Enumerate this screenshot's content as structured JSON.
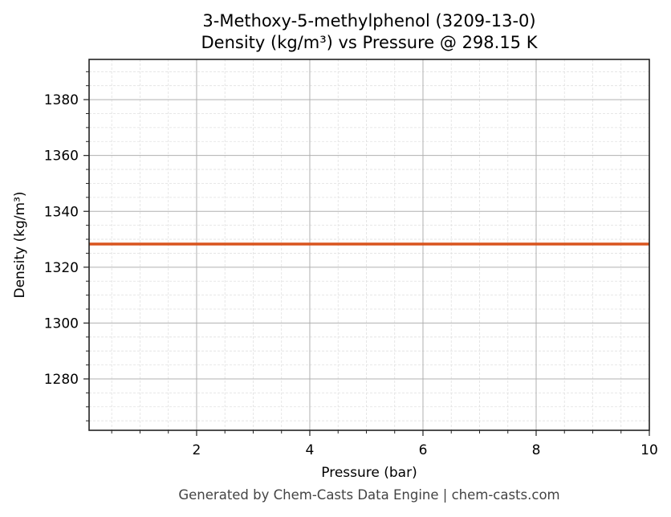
{
  "chart_data": {
    "type": "line",
    "title": "3-Methoxy-5-methylphenol (3209-13-0)",
    "subtitle": "Density (kg/m³) vs Pressure @ 298.15 K",
    "xlabel": "Pressure (bar)",
    "ylabel": "Density (kg/m³)",
    "xlim": [
      0.1,
      10
    ],
    "ylim": [
      1261.6,
      1394.4
    ],
    "x_ticks": [
      2,
      4,
      6,
      8,
      10
    ],
    "y_ticks": [
      1280,
      1300,
      1320,
      1340,
      1360,
      1380
    ],
    "grid": true,
    "minor_grid": true,
    "legend": null,
    "series": [
      {
        "name": "Density",
        "color": "#d9541e",
        "x": [
          0.1,
          1,
          2,
          3,
          4,
          5,
          6,
          7,
          8,
          9,
          10
        ],
        "values": [
          1328.3,
          1328.3,
          1328.3,
          1328.3,
          1328.3,
          1328.3,
          1328.3,
          1328.3,
          1328.3,
          1328.3,
          1328.3
        ]
      }
    ]
  },
  "header": {
    "title": "3-Methoxy-5-methylphenol (3209-13-0)",
    "subtitle": "Density (kg/m³) vs Pressure @ 298.15 K"
  },
  "axes": {
    "xlabel": "Pressure (bar)",
    "ylabel": "Density (kg/m³)",
    "x_tick_labels": [
      "2",
      "4",
      "6",
      "8",
      "10"
    ],
    "y_tick_labels": [
      "1280",
      "1300",
      "1320",
      "1340",
      "1360",
      "1380"
    ]
  },
  "footer": {
    "text": "Generated by Chem-Casts Data Engine | chem-casts.com"
  },
  "colors": {
    "line": "#d9541e",
    "major_grid": "#b0b0b0",
    "minor_grid": "#e0e0e0",
    "axes": "#222222",
    "footer": "#444444"
  }
}
